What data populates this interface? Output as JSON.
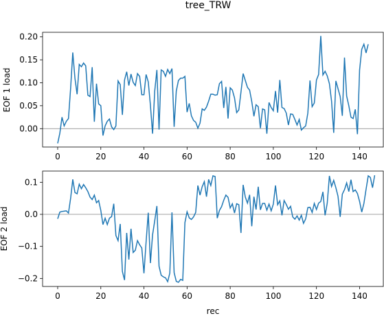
{
  "chart_data": {
    "type": "line",
    "title": "tree_TRW",
    "xlabel": "rec",
    "line_color": "#1f77b4",
    "zero_line_color": "#808080",
    "subplots": [
      {
        "ylabel": "EOF 1 load",
        "xlim": [
          -7,
          151
        ],
        "ylim": [
          -0.04,
          0.21
        ],
        "xticks": [
          0,
          20,
          40,
          60,
          80,
          100,
          120,
          140
        ],
        "yticks": [
          0.0,
          0.05,
          0.1,
          0.15,
          0.2
        ],
        "ytick_labels": [
          "0.00",
          "0.05",
          "0.10",
          "0.15",
          "0.20"
        ],
        "values": [
          -0.032,
          -0.01,
          0.025,
          0.006,
          0.016,
          0.022,
          0.088,
          0.166,
          0.11,
          0.075,
          0.14,
          0.135,
          0.143,
          0.137,
          0.073,
          0.07,
          0.134,
          0.015,
          0.098,
          0.054,
          0.05,
          -0.015,
          0.006,
          0.016,
          0.021,
          0.004,
          -0.002,
          0.006,
          0.104,
          0.096,
          0.03,
          0.106,
          0.124,
          0.094,
          0.119,
          0.101,
          0.094,
          0.12,
          0.114,
          0.074,
          0.074,
          0.118,
          0.102,
          0.051,
          -0.011,
          0.082,
          0.128,
          -0.002,
          0.128,
          0.125,
          0.114,
          0.129,
          0.12,
          0.131,
          0.004,
          0.082,
          0.105,
          0.11,
          0.11,
          0.114,
          0.036,
          0.055,
          0.028,
          0.018,
          0.014,
          0.001,
          0.012,
          0.043,
          0.04,
          0.047,
          0.06,
          0.075,
          0.075,
          0.073,
          0.074,
          0.098,
          0.103,
          0.045,
          0.091,
          0.022,
          0.089,
          0.084,
          0.067,
          0.035,
          0.041,
          0.08,
          0.12,
          0.105,
          0.09,
          0.084,
          0.059,
          0.027,
          0.052,
          0.048,
          0.001,
          0.043,
          0.041,
          -0.011,
          0.057,
          0.046,
          0.039,
          0.082,
          0.035,
          0.106,
          0.046,
          0.044,
          0.034,
          0.008,
          0.032,
          0.031,
          0.02,
          0.008,
          0.02,
          -0.003,
          0.002,
          0.006,
          0.034,
          0.105,
          0.048,
          0.056,
          0.106,
          0.118,
          0.202,
          0.117,
          0.125,
          0.115,
          0.098,
          0.06,
          -0.009,
          0.104,
          0.087,
          0.07,
          0.028,
          0.155,
          0.071,
          0.05,
          0.025,
          0.022,
          0.042,
          -0.012,
          0.128,
          0.173,
          0.184,
          0.165,
          0.184
        ]
      },
      {
        "ylabel": "EOF 2 load",
        "xlim": [
          -7,
          151
        ],
        "ylim": [
          -0.225,
          0.135
        ],
        "xticks": [
          0,
          20,
          40,
          60,
          80,
          100,
          120,
          140
        ],
        "yticks": [
          -0.2,
          -0.1,
          0.0,
          0.1
        ],
        "ytick_labels": [
          "−0.2",
          "−0.1",
          "0.0",
          "0.1"
        ],
        "values": [
          -0.014,
          0.007,
          0.009,
          0.01,
          0.011,
          0.004,
          0.05,
          0.109,
          0.068,
          0.064,
          0.094,
          0.08,
          0.093,
          0.083,
          0.071,
          0.054,
          0.046,
          0.06,
          0.036,
          0.043,
          0.012,
          -0.032,
          -0.012,
          -0.032,
          -0.012,
          -0.007,
          0.033,
          -0.066,
          -0.082,
          -0.03,
          -0.178,
          -0.205,
          -0.058,
          -0.141,
          -0.045,
          -0.119,
          -0.112,
          -0.082,
          -0.095,
          -0.105,
          -0.184,
          -0.086,
          0.005,
          -0.152,
          -0.064,
          -0.02,
          0.026,
          -0.162,
          -0.19,
          -0.195,
          -0.198,
          -0.21,
          -0.183,
          0.006,
          -0.182,
          -0.209,
          -0.212,
          -0.203,
          -0.206,
          -0.026,
          0.008,
          -0.011,
          -0.016,
          -0.008,
          0.006,
          0.09,
          0.06,
          0.086,
          0.102,
          0.055,
          0.109,
          0.09,
          0.12,
          0.118,
          -0.012,
          0.012,
          0.024,
          0.044,
          0.06,
          0.053,
          0.02,
          0.033,
          0.004,
          0.033,
          0.03,
          -0.058,
          0.092,
          0.054,
          0.035,
          0.061,
          -0.037,
          0.055,
          0.015,
          0.086,
          0.014,
          0.034,
          0.034,
          0.013,
          0.032,
          0.011,
          0.032,
          0.09,
          0.03,
          0.042,
          -0.003,
          0.043,
          0.031,
          0.016,
          0.025,
          -0.008,
          -0.015,
          -0.005,
          -0.018,
          -0.003,
          -0.028,
          -0.014,
          0.021,
          0.022,
          0.006,
          0.034,
          0.015,
          0.035,
          0.04,
          0.07,
          -0.003,
          0.035,
          0.12,
          0.087,
          0.106,
          0.083,
          0.056,
          -0.008,
          0.063,
          0.077,
          0.098,
          0.071,
          0.108,
          0.071,
          0.076,
          0.065,
          0.04,
          0.007,
          0.034,
          0.078,
          0.12,
          0.115,
          0.083,
          0.122
        ]
      }
    ]
  }
}
